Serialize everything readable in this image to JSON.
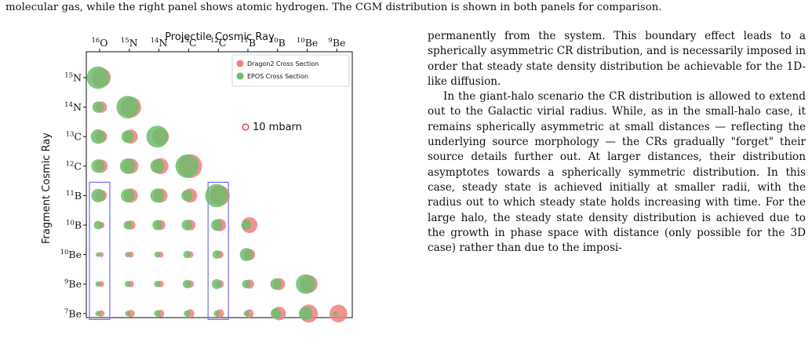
{
  "caption": {
    "text": "molecular gas, while the right panel shows atomic hydrogen. The CGM distribution is shown in both panels for comparison."
  },
  "body_text": {
    "paragraphs": [
      "permanently from the system. This boundary effect leads to a spherically asymmetric CR distribution, and is necessarily imposed in order that steady state density distribution be achievable for the 1D-like diffusion.",
      "In the giant-halo scenario the CR distribution is allowed to extend out to the Galactic virial radius. While, as in the small-halo case, it remains spherically asymmetric at small distances — reflecting the underlying source morphology — the CRs gradually \"forget\" their source details further out. At larger distances, their distribution asymptotes towards a spherically symmetric distribution. In this case, steady state is achieved initially at smaller radii, with the radius out to which steady state holds increasing with time. For the large halo, the steady state density distribution is achieved due to the growth in phase space with distance (only possible for the 3D case) rather than due to the imposi-"
    ]
  },
  "chart_data": {
    "type": "scatter",
    "xlabel": "Projectile Cosmic Ray",
    "ylabel": "Fragment Cosmic Ray",
    "x_ticks": [
      {
        "mass": "16",
        "el": "O"
      },
      {
        "mass": "15",
        "el": "N"
      },
      {
        "mass": "14",
        "el": "N"
      },
      {
        "mass": "13",
        "el": "C"
      },
      {
        "mass": "12",
        "el": "C"
      },
      {
        "mass": "11",
        "el": "B"
      },
      {
        "mass": "10",
        "el": "B"
      },
      {
        "mass": "10",
        "el": "Be"
      },
      {
        "mass": "9",
        "el": "Be"
      }
    ],
    "y_ticks": [
      {
        "mass": "15",
        "el": "N"
      },
      {
        "mass": "14",
        "el": "N"
      },
      {
        "mass": "13",
        "el": "C"
      },
      {
        "mass": "12",
        "el": "C"
      },
      {
        "mass": "11",
        "el": "B"
      },
      {
        "mass": "10",
        "el": "B"
      },
      {
        "mass": "10",
        "el": "Be"
      },
      {
        "mass": "9",
        "el": "Be"
      },
      {
        "mass": "7",
        "el": "Be"
      }
    ],
    "size_unit": "mbarn",
    "scale_marker": {
      "value": 10,
      "label": "10 mbarn",
      "color": "#e8262a"
    },
    "legend": {
      "placement": "top-right",
      "entries": [
        {
          "name": "Dragon2 Cross Section",
          "color": "#f07f7f"
        },
        {
          "name": "EPOS Cross Section",
          "color": "#6dbd6d"
        }
      ]
    },
    "series": [
      {
        "name": "Dragon2 Cross Section",
        "color": "#f07f7f",
        "values": [
          [
            0,
            0,
            26
          ],
          [
            1,
            0,
            9
          ],
          [
            1,
            1,
            30
          ],
          [
            2,
            0,
            10
          ],
          [
            2,
            1,
            14
          ],
          [
            2,
            2,
            20
          ],
          [
            3,
            0,
            12
          ],
          [
            3,
            1,
            16
          ],
          [
            3,
            2,
            18
          ],
          [
            3,
            3,
            40
          ],
          [
            4,
            0,
            9
          ],
          [
            4,
            1,
            14
          ],
          [
            4,
            2,
            14
          ],
          [
            4,
            3,
            14
          ],
          [
            4,
            4,
            28
          ],
          [
            5,
            0,
            3
          ],
          [
            5,
            1,
            6
          ],
          [
            5,
            2,
            7
          ],
          [
            5,
            3,
            8
          ],
          [
            5,
            4,
            11
          ],
          [
            5,
            5,
            18
          ],
          [
            6,
            0,
            1.8
          ],
          [
            6,
            1,
            2.5
          ],
          [
            6,
            2,
            2.5
          ],
          [
            6,
            3,
            3
          ],
          [
            6,
            4,
            4
          ],
          [
            6,
            5,
            9
          ],
          [
            7,
            0,
            2.5
          ],
          [
            7,
            1,
            3
          ],
          [
            7,
            2,
            3
          ],
          [
            7,
            3,
            4
          ],
          [
            7,
            4,
            4.5
          ],
          [
            7,
            5,
            6
          ],
          [
            7,
            6,
            10
          ],
          [
            7,
            7,
            22
          ],
          [
            8,
            0,
            3
          ],
          [
            8,
            1,
            4
          ],
          [
            8,
            2,
            4
          ],
          [
            8,
            3,
            5
          ],
          [
            8,
            4,
            5
          ],
          [
            8,
            5,
            5
          ],
          [
            8,
            6,
            13
          ],
          [
            8,
            7,
            23
          ],
          [
            8,
            8,
            22
          ]
        ]
      },
      {
        "name": "EPOS Cross Section",
        "color": "#6dbd6d",
        "values": [
          [
            0,
            0,
            36
          ],
          [
            1,
            0,
            9
          ],
          [
            1,
            1,
            36
          ],
          [
            2,
            0,
            15
          ],
          [
            2,
            1,
            11
          ],
          [
            2,
            2,
            34
          ],
          [
            3,
            0,
            13
          ],
          [
            3,
            1,
            17
          ],
          [
            3,
            2,
            14
          ],
          [
            3,
            3,
            38
          ],
          [
            4,
            0,
            13
          ],
          [
            4,
            1,
            13
          ],
          [
            4,
            2,
            14
          ],
          [
            4,
            3,
            9
          ],
          [
            4,
            4,
            38
          ],
          [
            5,
            0,
            5
          ],
          [
            5,
            1,
            5
          ],
          [
            5,
            2,
            7
          ],
          [
            5,
            3,
            8
          ],
          [
            5,
            4,
            9
          ],
          [
            5,
            5,
            7
          ],
          [
            6,
            0,
            1.5
          ],
          [
            6,
            1,
            2
          ],
          [
            6,
            2,
            2.5
          ],
          [
            6,
            3,
            4
          ],
          [
            6,
            4,
            5
          ],
          [
            6,
            5,
            12
          ],
          [
            7,
            0,
            2
          ],
          [
            7,
            1,
            2.5
          ],
          [
            7,
            2,
            3
          ],
          [
            7,
            3,
            5
          ],
          [
            7,
            4,
            7
          ],
          [
            7,
            5,
            5
          ],
          [
            7,
            6,
            9
          ],
          [
            7,
            7,
            27
          ],
          [
            8,
            0,
            2
          ],
          [
            8,
            1,
            2
          ],
          [
            8,
            2,
            3
          ],
          [
            8,
            3,
            3
          ],
          [
            8,
            4,
            2.5
          ],
          [
            8,
            5,
            2
          ],
          [
            8,
            6,
            8
          ],
          [
            8,
            7,
            13
          ],
          [
            8,
            8,
            1.5
          ]
        ]
      }
    ],
    "highlight_color": "#6f6ff0"
  }
}
